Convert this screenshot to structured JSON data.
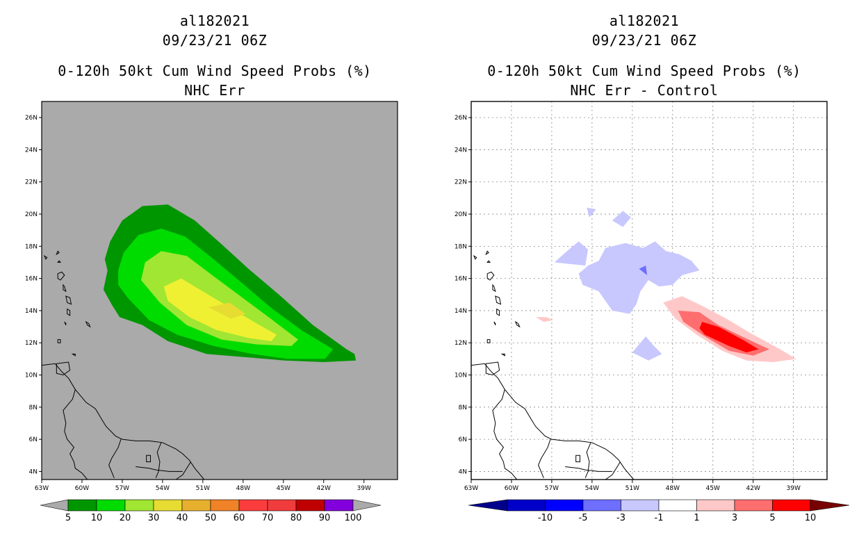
{
  "panels": [
    {
      "storm_id": "al182021",
      "datetime": "09/23/21 06Z",
      "product": "0-120h 50kt Cum Wind Speed Probs (%)",
      "subtitle": "NHC Err",
      "colorbar": {
        "labels": [
          "5",
          "10",
          "20",
          "30",
          "40",
          "50",
          "60",
          "70",
          "80",
          "90",
          "100"
        ],
        "colors": [
          "#009600",
          "#00dc00",
          "#a0e632",
          "#e6dc32",
          "#e6af2d",
          "#f08228",
          "#fa3c3c",
          "#f03c3c",
          "#c00000",
          "#8200dc"
        ]
      }
    },
    {
      "storm_id": "al182021",
      "datetime": "09/23/21 06Z",
      "product": "0-120h 50kt Cum Wind Speed Probs (%)",
      "subtitle": "NHC Err - Control",
      "colorbar": {
        "labels": [
          "-10",
          "-5",
          "-3",
          "-1",
          "1",
          "3",
          "5",
          "10"
        ],
        "colors": [
          "#0000c8",
          "#0000ff",
          "#6e6eff",
          "#c8c8ff",
          "#ffffff",
          "#ffc8c8",
          "#ff6e6e",
          "#ff0000"
        ]
      }
    }
  ],
  "map": {
    "lon_labels": [
      "63W",
      "60W",
      "57W",
      "54W",
      "51W",
      "48W",
      "45W",
      "42W",
      "39W"
    ],
    "lat_labels": [
      "4N",
      "6N",
      "8N",
      "10N",
      "12N",
      "14N",
      "16N",
      "18N",
      "20N",
      "22N",
      "24N",
      "26N"
    ],
    "lon_range": [
      -63,
      -36.5
    ],
    "lat_range": [
      3.5,
      27
    ]
  },
  "colors": {
    "land_gray": "#aaaaaa",
    "prob_5": "#009600",
    "prob_10": "#00dc00",
    "prob_20": "#a0e632",
    "prob_30": "#f0f032",
    "prob_40": "#e6dc32",
    "diff_neg_light": "#c8c8ff",
    "diff_neg_mid": "#6e6eff",
    "diff_pos_light": "#ffc8c8",
    "diff_pos_mid": "#ff6e6e",
    "diff_pos_strong": "#ff0000"
  }
}
